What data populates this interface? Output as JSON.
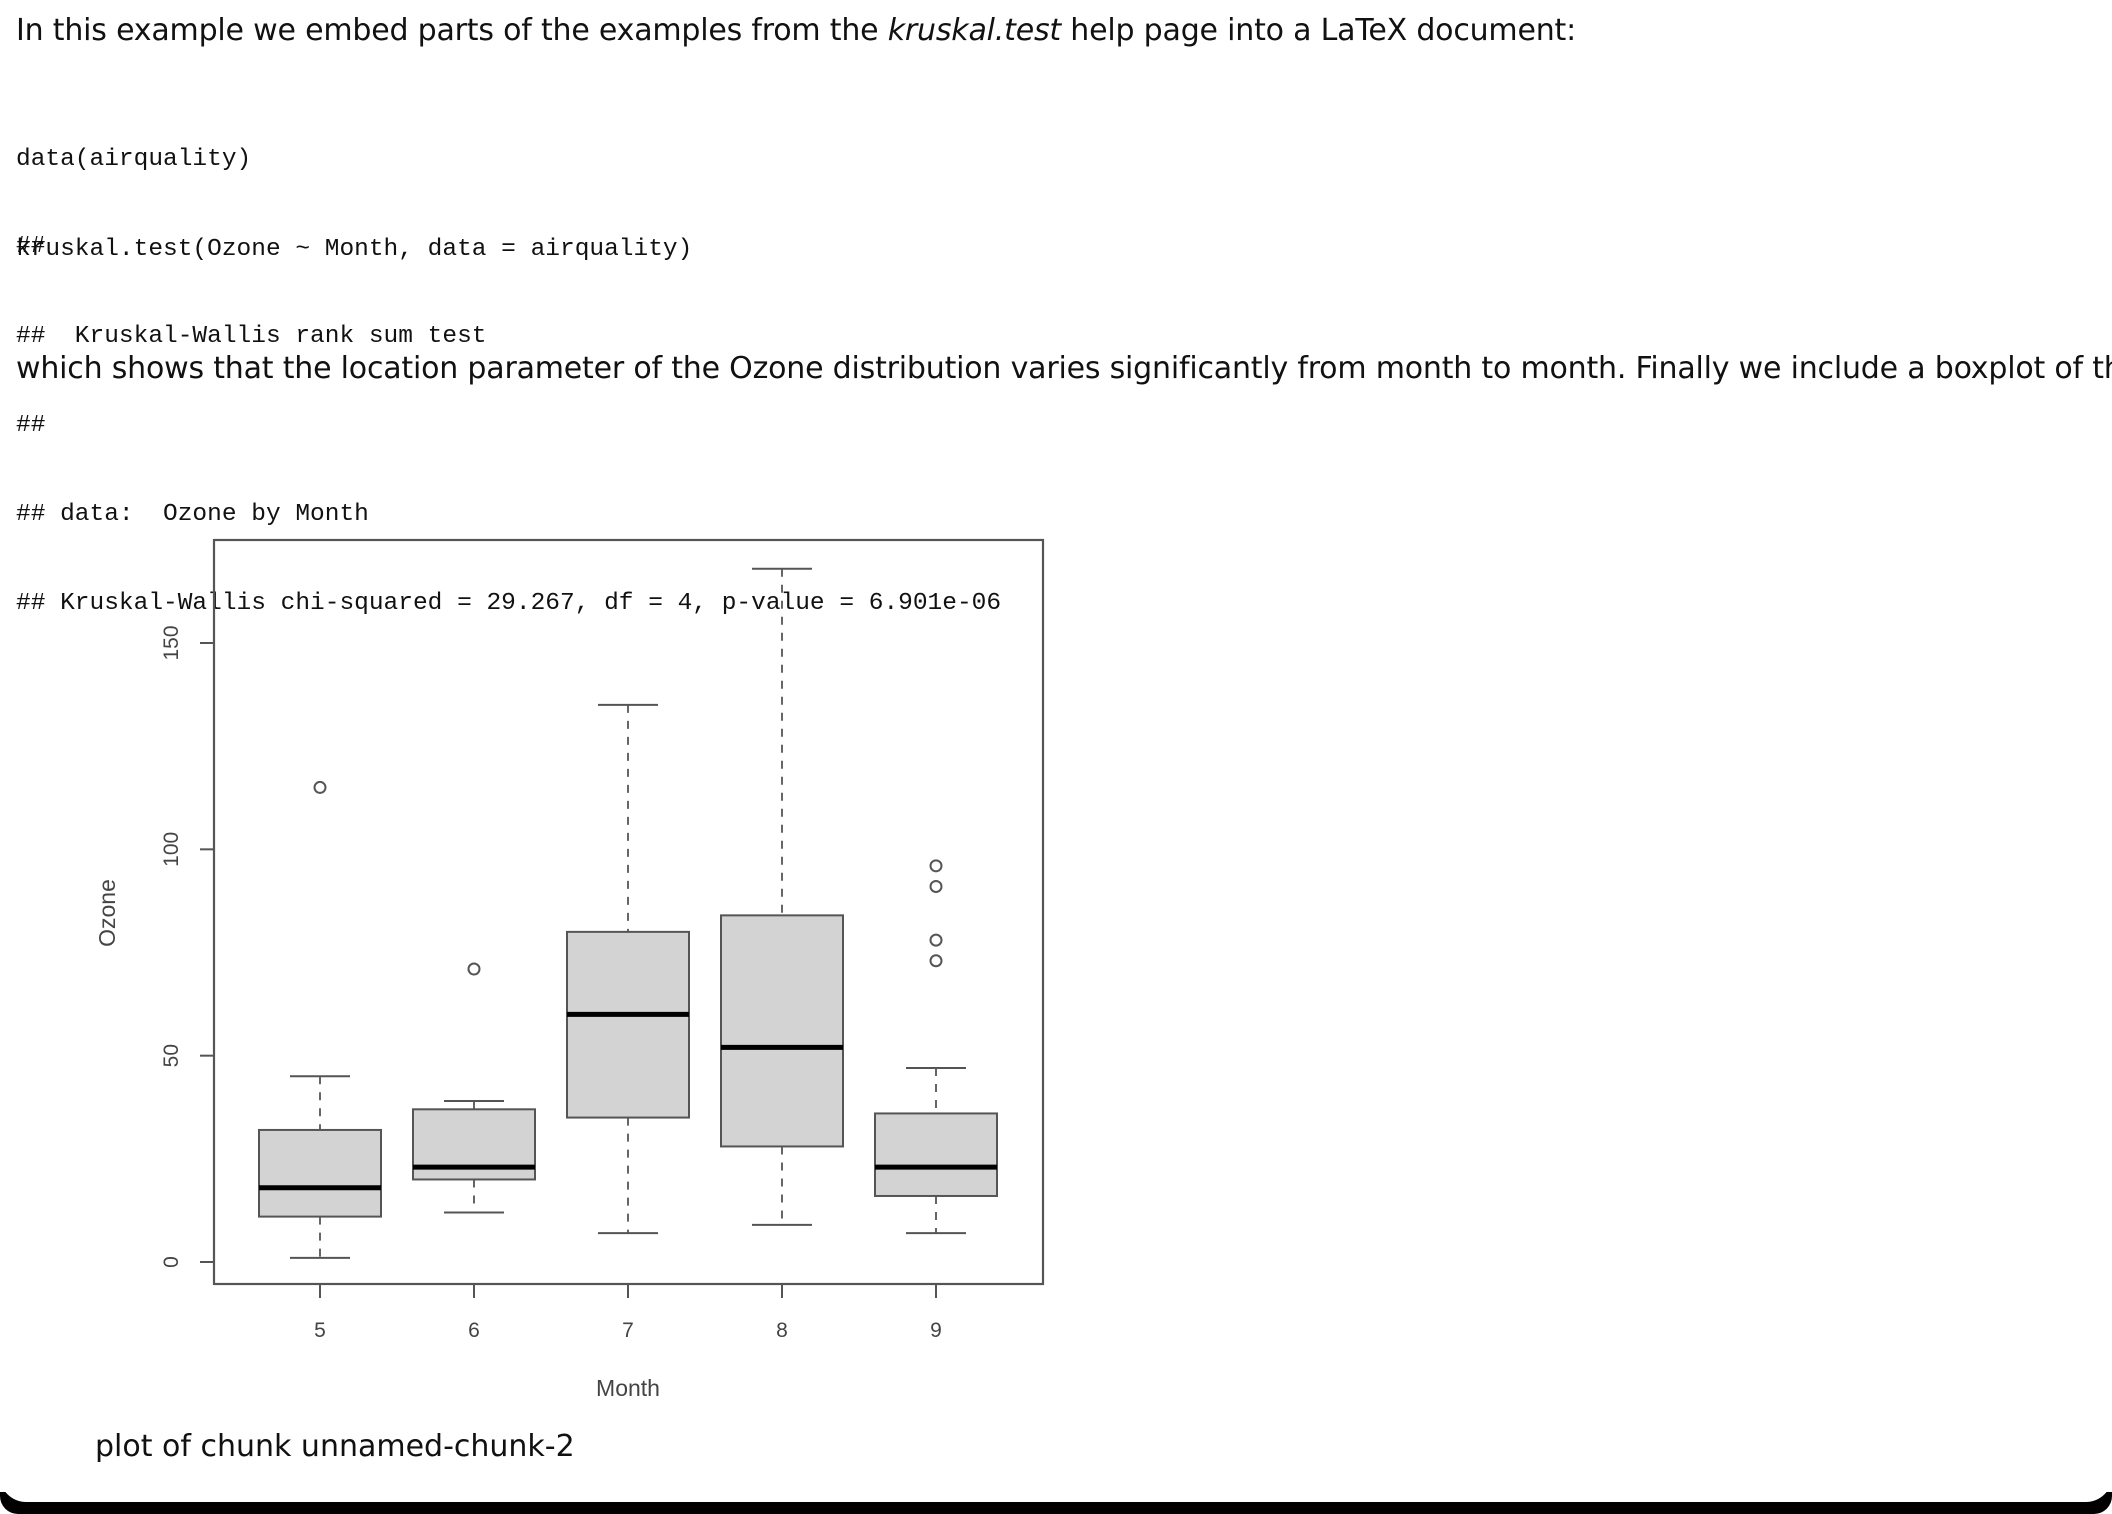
{
  "intro": {
    "before": "In this example we embed parts of the examples from the ",
    "emphasis": "kruskal.test",
    "after": " help page into a LaTeX document:"
  },
  "code_input": [
    "data(airquality)",
    "kruskal.test(Ozone ~ Month, data = airquality)"
  ],
  "code_output": [
    "##",
    "##  Kruskal-Wallis rank sum test",
    "##",
    "## data:  Ozone by Month",
    "## Kruskal-Wallis chi-squared = 29.267, df = 4, p-value = 6.901e-06"
  ],
  "conclusion": "which shows that the location parameter of the Ozone distribution varies significantly from month to month. Finally we include a boxplot of the data:",
  "caption": "plot of chunk unnamed-chunk-2",
  "chart_data": {
    "type": "boxplot",
    "xlabel": "Month",
    "ylabel": "Ozone",
    "ylim": [
      -6,
      168
    ],
    "yticks": [
      0,
      50,
      100,
      150
    ],
    "grid": false,
    "box_fill": "#d3d3d3",
    "categories": [
      "5",
      "6",
      "7",
      "8",
      "9"
    ],
    "boxes": [
      {
        "category": "5",
        "min": 1,
        "q1": 11,
        "median": 18,
        "q3": 32,
        "max": 45,
        "outliers": [
          115
        ]
      },
      {
        "category": "6",
        "min": 12,
        "q1": 20,
        "median": 23,
        "q3": 37,
        "max": 39,
        "outliers": [
          71
        ]
      },
      {
        "category": "7",
        "min": 7,
        "q1": 35,
        "median": 60,
        "q3": 80,
        "max": 135,
        "outliers": []
      },
      {
        "category": "8",
        "min": 9,
        "q1": 28,
        "median": 52,
        "q3": 84,
        "max": 168,
        "outliers": []
      },
      {
        "category": "9",
        "min": 7,
        "q1": 16,
        "median": 23,
        "q3": 36,
        "max": 47,
        "outliers": [
          73,
          78,
          91,
          96
        ]
      }
    ]
  }
}
